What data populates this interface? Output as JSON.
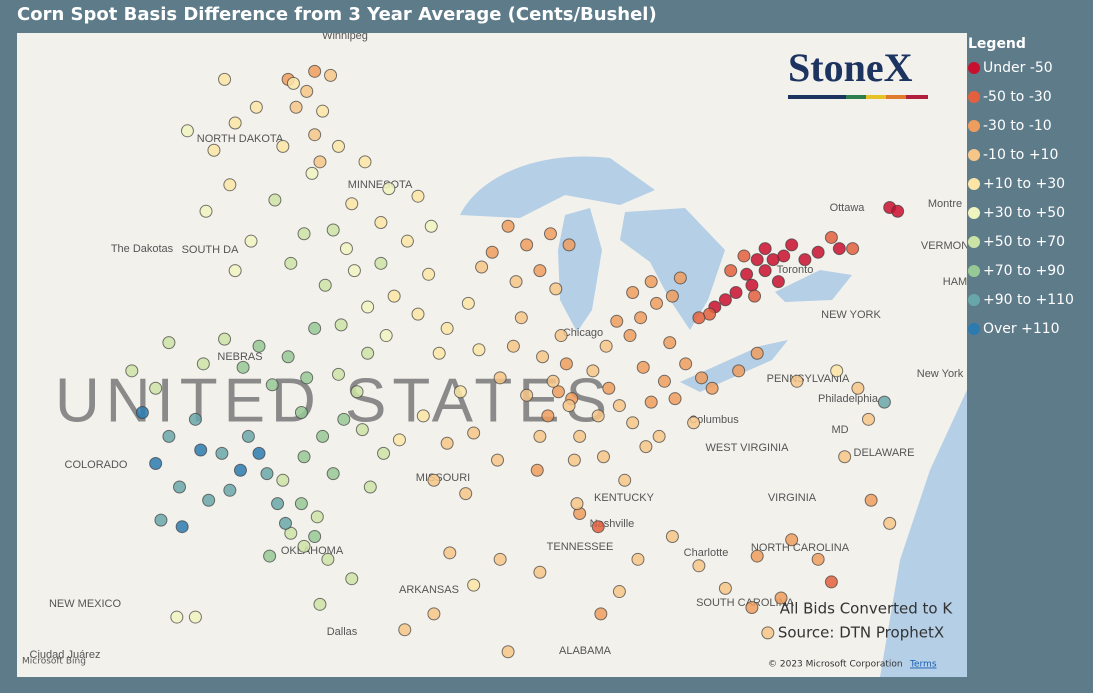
{
  "header": {
    "title": "Corn Spot Basis Difference from 3 Year Average (Cents/Bushel)"
  },
  "legend": {
    "title": "Legend",
    "items": [
      {
        "label": "Under -50",
        "color": "#c8102e"
      },
      {
        "label": "-50 to -30",
        "color": "#e2603e"
      },
      {
        "label": "-30 to -10",
        "color": "#ef9d5e"
      },
      {
        "label": "-10 to +10",
        "color": "#f6c688"
      },
      {
        "label": "+10 to +30",
        "color": "#fbe6a6"
      },
      {
        "label": "+30 to +50",
        "color": "#f0f4bf"
      },
      {
        "label": "+50 to +70",
        "color": "#cce3a6"
      },
      {
        "label": "+70 to +90",
        "color": "#97c997"
      },
      {
        "label": "+90 to +110",
        "color": "#68a7a9"
      },
      {
        "label": "Over +110",
        "color": "#2c7bb0"
      }
    ]
  },
  "logo": "StoneX",
  "notes": [
    "All Bids Converted to K",
    "Source: DTN ProphetX"
  ],
  "attribution": {
    "copyright": "© 2023 Microsoft Corporation",
    "terms": "Terms",
    "provider": "Microsoft Bing"
  },
  "map": {
    "country_label": "UNITED STATES",
    "labels": [
      "Winnipeg",
      "NORTH DAKOTA",
      "MINNESOTA",
      "The Dakotas",
      "SOUTH DA",
      "NEBRAS",
      "COLORADO",
      "MISSOURI",
      "KENTUCKY",
      "Nashville",
      "TENNESSEE",
      "OKLAHOMA",
      "ARKANSAS",
      "NEW MEXICO",
      "Dallas",
      "ALABAMA",
      "Ciudad Juárez",
      "Charlotte",
      "NORTH CAROLINA",
      "SOUTH CAROLINA",
      "VIRGINIA",
      "WEST VIRGINIA",
      "DELAWARE",
      "MD",
      "PENNSYLVANIA",
      "Philadelphia",
      "New York",
      "NEW YORK",
      "Columbus",
      "Chicago",
      "Toronto",
      "Ottawa",
      "Montre",
      "VERMON",
      "HAM"
    ],
    "points": [
      [
        -80.5,
        43.6,
        0
      ],
      [
        -80.2,
        43.9,
        0
      ],
      [
        -80.0,
        43.3,
        0
      ],
      [
        -79.8,
        44.0,
        0
      ],
      [
        -80.8,
        43.9,
        0
      ],
      [
        -81.2,
        43.5,
        0
      ],
      [
        -81.6,
        43.0,
        0
      ],
      [
        -82.0,
        42.8,
        0
      ],
      [
        -82.4,
        42.6,
        0
      ],
      [
        -81.0,
        43.2,
        0
      ],
      [
        -80.5,
        44.2,
        0
      ],
      [
        -79.5,
        44.3,
        0
      ],
      [
        -79.0,
        43.9,
        0
      ],
      [
        -78.5,
        44.1,
        0
      ],
      [
        -77.7,
        44.2,
        0
      ],
      [
        -75.8,
        45.3,
        0
      ],
      [
        -75.5,
        45.2,
        0
      ],
      [
        -81.3,
        44.0,
        1
      ],
      [
        -80.9,
        42.9,
        1
      ],
      [
        -82.6,
        42.4,
        1
      ],
      [
        -83.0,
        42.3,
        1
      ],
      [
        -81.8,
        43.6,
        1
      ],
      [
        -78.0,
        44.5,
        1
      ],
      [
        -77.2,
        44.2,
        1
      ],
      [
        -86.8,
        36.2,
        1
      ],
      [
        -78.0,
        34.5,
        1
      ],
      [
        -85.2,
        42.3,
        2
      ],
      [
        -84.6,
        42.7,
        2
      ],
      [
        -84.0,
        42.9,
        2
      ],
      [
        -83.7,
        43.4,
        2
      ],
      [
        -84.8,
        43.3,
        2
      ],
      [
        -86.1,
        42.2,
        2
      ],
      [
        -85.6,
        41.8,
        2
      ],
      [
        -83.5,
        41.0,
        2
      ],
      [
        -82.9,
        40.6,
        2
      ],
      [
        -84.3,
        40.5,
        2
      ],
      [
        -84.8,
        39.9,
        2
      ],
      [
        -83.9,
        40.0,
        2
      ],
      [
        -82.5,
        40.3,
        2
      ],
      [
        -81.5,
        40.8,
        2
      ],
      [
        -80.8,
        41.3,
        2
      ],
      [
        -85.5,
        43.0,
        2
      ],
      [
        -84.1,
        41.6,
        2
      ],
      [
        -86.4,
        40.3,
        2
      ],
      [
        -85.1,
        40.9,
        2
      ],
      [
        -88.3,
        40.2,
        2
      ],
      [
        -87.8,
        40.0,
        2
      ],
      [
        -88.7,
        39.5,
        2
      ],
      [
        -89.1,
        37.9,
        2
      ],
      [
        -88.0,
        41.0,
        2
      ],
      [
        -89.5,
        44.3,
        2
      ],
      [
        -90.2,
        44.8,
        2
      ],
      [
        -88.6,
        44.6,
        2
      ],
      [
        -89.0,
        43.6,
        2
      ],
      [
        -87.9,
        44.3,
        2
      ],
      [
        -90.8,
        44.1,
        2
      ],
      [
        -97.5,
        48.8,
        2
      ],
      [
        -98.5,
        48.6,
        2
      ],
      [
        -87.5,
        36.6,
        2
      ],
      [
        -80.8,
        35.3,
        2
      ],
      [
        -79.5,
        35.8,
        2
      ],
      [
        -78.5,
        35.2,
        2
      ],
      [
        -79.9,
        34.0,
        2
      ],
      [
        -81.0,
        33.7,
        2
      ],
      [
        -86.7,
        33.5,
        2
      ],
      [
        -76.5,
        37.0,
        2
      ],
      [
        -86.5,
        41.5,
        3
      ],
      [
        -87.0,
        40.8,
        3
      ],
      [
        -86.0,
        39.8,
        3
      ],
      [
        -85.5,
        39.3,
        3
      ],
      [
        -86.8,
        39.5,
        3
      ],
      [
        -87.5,
        38.9,
        3
      ],
      [
        -87.9,
        39.8,
        3
      ],
      [
        -88.5,
        40.5,
        3
      ],
      [
        -88.9,
        41.2,
        3
      ],
      [
        -89.5,
        40.1,
        3
      ],
      [
        -89.0,
        38.9,
        3
      ],
      [
        -87.7,
        38.2,
        3
      ],
      [
        -86.6,
        38.3,
        3
      ],
      [
        -85.0,
        38.6,
        3
      ],
      [
        -84.5,
        38.9,
        3
      ],
      [
        -83.2,
        39.3,
        3
      ],
      [
        -88.2,
        41.8,
        3
      ],
      [
        -90.0,
        41.5,
        3
      ],
      [
        -89.7,
        42.3,
        3
      ],
      [
        -90.5,
        40.6,
        3
      ],
      [
        -89.9,
        43.3,
        3
      ],
      [
        -91.2,
        43.7,
        3
      ],
      [
        -88.4,
        43.1,
        3
      ],
      [
        -91.5,
        39.0,
        3
      ],
      [
        -92.5,
        38.7,
        3
      ],
      [
        -93.0,
        37.6,
        3
      ],
      [
        -91.8,
        37.2,
        3
      ],
      [
        -90.6,
        38.2,
        3
      ],
      [
        -97.8,
        48.3,
        3
      ],
      [
        -97.5,
        47.2,
        3
      ],
      [
        -98.2,
        47.9,
        3
      ],
      [
        -96.9,
        48.7,
        3
      ],
      [
        -97.3,
        46.5,
        3
      ],
      [
        -85.3,
        35.2,
        3
      ],
      [
        -84.0,
        35.9,
        3
      ],
      [
        -83.0,
        35.0,
        3
      ],
      [
        -80.4,
        32.9,
        3
      ],
      [
        -82.0,
        34.3,
        3
      ],
      [
        -86.0,
        34.2,
        3
      ],
      [
        -89.0,
        34.8,
        3
      ],
      [
        -90.5,
        35.2,
        3
      ],
      [
        -92.4,
        35.4,
        3
      ],
      [
        -93.0,
        33.5,
        3
      ],
      [
        -94.1,
        33.0,
        3
      ],
      [
        -90.2,
        32.3,
        3
      ],
      [
        -87.6,
        36.9,
        3
      ],
      [
        -85.8,
        37.6,
        3
      ],
      [
        -76.6,
        39.4,
        3
      ],
      [
        -77.5,
        38.3,
        3
      ],
      [
        -75.8,
        36.3,
        3
      ],
      [
        -77.0,
        40.3,
        3
      ],
      [
        -79.3,
        40.5,
        3
      ],
      [
        -93.4,
        39.5,
        4
      ],
      [
        -94.3,
        38.8,
        4
      ],
      [
        -92.0,
        40.2,
        4
      ],
      [
        -92.5,
        42.0,
        4
      ],
      [
        -93.6,
        42.4,
        4
      ],
      [
        -94.5,
        42.9,
        4
      ],
      [
        -91.7,
        42.7,
        4
      ],
      [
        -93.2,
        43.5,
        4
      ],
      [
        -94.0,
        44.4,
        4
      ],
      [
        -95.0,
        44.9,
        4
      ],
      [
        -93.6,
        45.6,
        4
      ],
      [
        -96.1,
        45.4,
        4
      ],
      [
        -95.6,
        46.5,
        4
      ],
      [
        -96.6,
        46.9,
        4
      ],
      [
        -97.2,
        47.8,
        4
      ],
      [
        -92.8,
        41.3,
        4
      ],
      [
        -91.3,
        41.4,
        4
      ],
      [
        -100.5,
        47.5,
        4
      ],
      [
        -99.7,
        47.9,
        4
      ],
      [
        -101.3,
        46.8,
        4
      ],
      [
        -98.7,
        46.9,
        4
      ],
      [
        -100.7,
        45.9,
        4
      ],
      [
        -98.3,
        48.5,
        4
      ],
      [
        -100.9,
        48.6,
        4
      ],
      [
        -91.5,
        34.4,
        4
      ],
      [
        -77.8,
        40.8,
        4
      ],
      [
        -94.8,
        41.8,
        5
      ],
      [
        -95.5,
        42.6,
        5
      ],
      [
        -96.0,
        43.6,
        5
      ],
      [
        -93.1,
        44.8,
        5
      ],
      [
        -94.7,
        45.8,
        5
      ],
      [
        -96.3,
        44.2,
        5
      ],
      [
        -97.6,
        46.2,
        5
      ],
      [
        -102.3,
        47.3,
        5
      ],
      [
        -101.6,
        45.2,
        5
      ],
      [
        -99.9,
        44.4,
        5
      ],
      [
        -100.5,
        43.6,
        5
      ],
      [
        -102.7,
        33.4,
        5
      ],
      [
        -102.0,
        33.4,
        5
      ],
      [
        -95.5,
        41.3,
        6
      ],
      [
        -96.5,
        42.1,
        6
      ],
      [
        -97.1,
        43.2,
        6
      ],
      [
        -96.8,
        44.7,
        6
      ],
      [
        -97.9,
        44.6,
        6
      ],
      [
        -98.4,
        43.8,
        6
      ],
      [
        -95.0,
        43.8,
        6
      ],
      [
        -99.0,
        45.5,
        6
      ],
      [
        -96.6,
        40.7,
        6
      ],
      [
        -95.9,
        40.2,
        6
      ],
      [
        -95.7,
        39.1,
        6
      ],
      [
        -94.9,
        38.4,
        6
      ],
      [
        -95.4,
        37.4,
        6
      ],
      [
        -100.9,
        41.7,
        6
      ],
      [
        -101.7,
        41.0,
        6
      ],
      [
        -98.7,
        37.6,
        6
      ],
      [
        -97.4,
        36.5,
        6
      ],
      [
        -97.9,
        35.6,
        6
      ],
      [
        -98.4,
        36.0,
        6
      ],
      [
        -97.0,
        35.2,
        6
      ],
      [
        -96.1,
        34.6,
        6
      ],
      [
        -97.3,
        33.8,
        6
      ],
      [
        -104.4,
        40.8,
        6
      ],
      [
        -103.5,
        40.3,
        6
      ],
      [
        -103.0,
        41.6,
        6
      ],
      [
        -98.5,
        41.2,
        7
      ],
      [
        -97.8,
        40.6,
        7
      ],
      [
        -99.1,
        40.4,
        7
      ],
      [
        -98.0,
        39.6,
        7
      ],
      [
        -97.2,
        38.9,
        7
      ],
      [
        -96.4,
        39.4,
        7
      ],
      [
        -99.6,
        41.5,
        7
      ],
      [
        -97.5,
        42.0,
        7
      ],
      [
        -100.2,
        40.9,
        7
      ],
      [
        -96.8,
        37.8,
        7
      ],
      [
        -97.9,
        38.3,
        7
      ],
      [
        -98.0,
        36.9,
        7
      ],
      [
        -97.5,
        35.9,
        7
      ],
      [
        -99.2,
        35.3,
        7
      ],
      [
        -100.0,
        38.9,
        8
      ],
      [
        -101.0,
        38.4,
        8
      ],
      [
        -100.7,
        37.3,
        8
      ],
      [
        -99.3,
        37.8,
        8
      ],
      [
        -102.0,
        39.4,
        8
      ],
      [
        -101.5,
        37.0,
        8
      ],
      [
        -103.0,
        38.9,
        8
      ],
      [
        -102.6,
        37.4,
        8
      ],
      [
        -103.3,
        36.4,
        8
      ],
      [
        -98.9,
        36.9,
        8
      ],
      [
        -98.6,
        36.3,
        8
      ],
      [
        -76.0,
        39.9,
        8
      ],
      [
        -99.6,
        38.4,
        9
      ],
      [
        -100.3,
        37.9,
        9
      ],
      [
        -104.0,
        39.6,
        9
      ],
      [
        -101.8,
        38.5,
        9
      ],
      [
        -103.5,
        38.1,
        9
      ],
      [
        -102.5,
        36.2,
        9
      ]
    ]
  }
}
